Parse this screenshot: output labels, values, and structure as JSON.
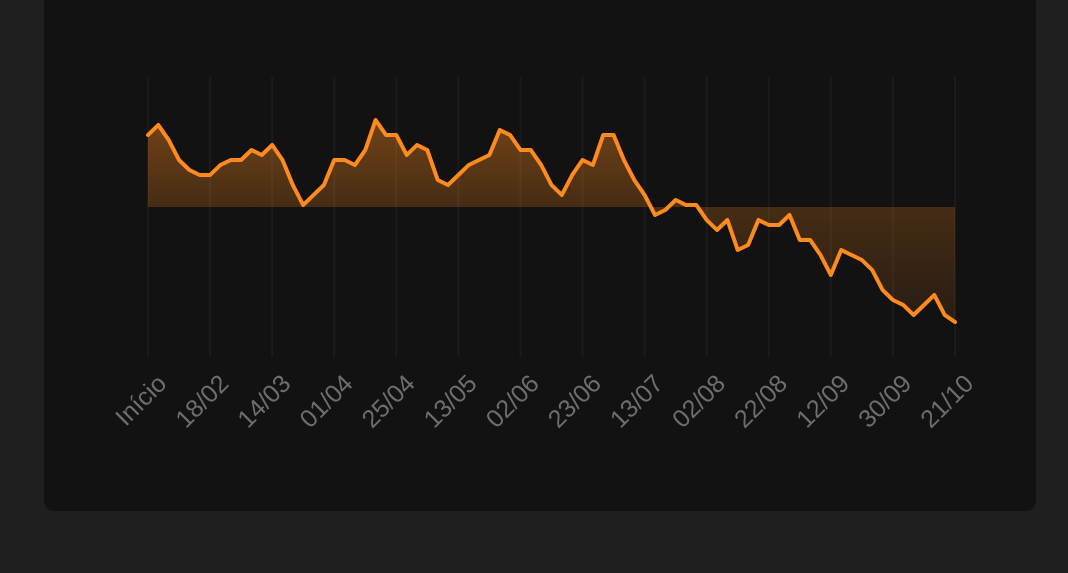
{
  "chart_data": {
    "type": "line",
    "color": "#ff8a1e",
    "grid": true,
    "categories": [
      "Início",
      null,
      null,
      null,
      null,
      null,
      "18/02",
      null,
      null,
      null,
      null,
      null,
      "14/03",
      null,
      null,
      null,
      null,
      null,
      "01/04",
      null,
      null,
      null,
      null,
      null,
      "25/04",
      null,
      null,
      null,
      null,
      null,
      "13/05",
      null,
      null,
      null,
      null,
      null,
      "02/06",
      null,
      null,
      null,
      null,
      null,
      "23/06",
      null,
      null,
      null,
      null,
      null,
      "13/07",
      null,
      null,
      null,
      null,
      null,
      "02/08",
      null,
      null,
      null,
      null,
      null,
      "22/08",
      null,
      null,
      null,
      null,
      null,
      "12/09",
      null,
      null,
      null,
      null,
      null,
      "30/09",
      null,
      null,
      null,
      null,
      null,
      "21/10"
    ],
    "values": [
      72,
      82,
      67,
      47,
      37,
      32,
      32,
      42,
      47,
      47,
      57,
      52,
      62,
      47,
      22,
      2,
      12,
      22,
      47,
      47,
      42,
      57,
      87,
      72,
      72,
      52,
      62,
      57,
      27,
      22,
      32,
      42,
      47,
      52,
      77,
      72,
      57,
      57,
      42,
      22,
      12,
      32,
      47,
      42,
      72,
      72,
      47,
      27,
      12,
      -8,
      -3,
      7,
      2,
      2,
      -13,
      -23,
      -13,
      -43,
      -38,
      -13,
      -18,
      -18,
      -8,
      -33,
      -33,
      -48,
      -68,
      -43,
      -48,
      -53,
      -63,
      -83,
      -93,
      -98,
      -108,
      -98,
      -88,
      -108,
      -115
    ],
    "ylim": [
      -150,
      130
    ]
  }
}
